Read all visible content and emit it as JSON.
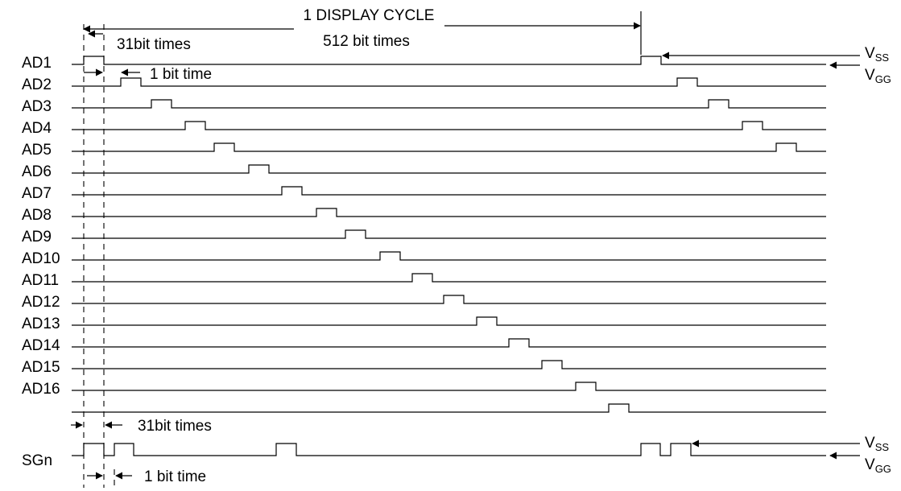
{
  "title": "1 DISPLAY CYCLE",
  "subtitle": "512 bit times",
  "annotations": {
    "top_gap": "31bit times",
    "top_width": "1 bit time",
    "bottom_gap": "31bit times",
    "bottom_width": "1 bit time"
  },
  "supply": {
    "vss": "V",
    "vss_sub": "SS",
    "vgg": "V",
    "vgg_sub": "GG"
  },
  "signals": [
    "AD1",
    "AD2",
    "AD3",
    "AD4",
    "AD5",
    "AD6",
    "AD7",
    "AD8",
    "AD9",
    "AD10",
    "AD11",
    "AD12",
    "AD13",
    "AD14",
    "AD15",
    "AD16"
  ],
  "sg_label": "SGn"
}
